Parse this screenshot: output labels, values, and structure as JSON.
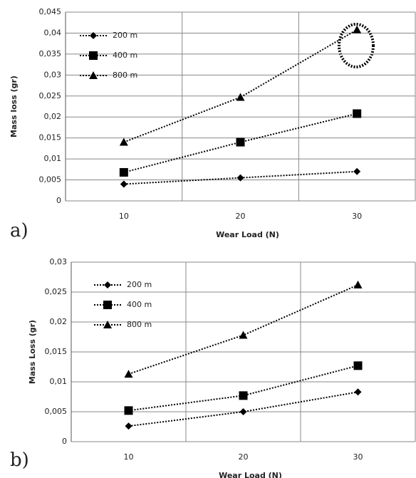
{
  "chart_data": [
    {
      "type": "line",
      "label": "a)",
      "xlabel": "Wear Load (N)",
      "ylabel": "Mass loss (gr)",
      "categories": [
        "10",
        "20",
        "30"
      ],
      "ylim": [
        0,
        0.045
      ],
      "yticks": [
        0,
        {
          "value": 0.005,
          "label": "0,005"
        },
        {
          "value": 0.01,
          "label": "0,01"
        },
        {
          "value": 0.015,
          "label": "0,015"
        },
        {
          "value": 0.02,
          "label": "0,02"
        },
        {
          "value": 0.025,
          "label": "0,025"
        },
        {
          "value": 0.03,
          "label": "0,03"
        },
        {
          "value": 0.035,
          "label": "0,035"
        },
        {
          "value": 0.04,
          "label": "0,04"
        },
        {
          "value": 0.045,
          "label": "0,045"
        }
      ],
      "grid": true,
      "series": [
        {
          "name": "200 m",
          "color": "#000000",
          "marker": "diamond",
          "values": [
            0.004,
            0.0055,
            0.007
          ]
        },
        {
          "name": "400 m",
          "color": "#000000",
          "marker": "square",
          "values": [
            0.0068,
            0.014,
            0.0208
          ]
        },
        {
          "name": "800 m",
          "color": "#000000",
          "marker": "triangle",
          "values": [
            0.014,
            0.0247,
            0.0408
          ]
        }
      ]
    },
    {
      "type": "line",
      "label": "b)",
      "xlabel": "Wear Load (N)",
      "ylabel": "Mass Loss (gr)",
      "categories": [
        "10",
        "20",
        "30"
      ],
      "ylim": [
        0,
        0.03
      ],
      "yticks": [
        0,
        {
          "value": 0.005,
          "label": "0,005"
        },
        {
          "value": 0.01,
          "label": "0,01"
        },
        {
          "value": 0.015,
          "label": "0,015"
        },
        {
          "value": 0.02,
          "label": "0,02"
        },
        {
          "value": 0.025,
          "label": "0,025"
        },
        {
          "value": 0.03,
          "label": "0,03"
        }
      ],
      "grid": true,
      "series": [
        {
          "name": "200 m",
          "color": "#000000",
          "marker": "diamond",
          "values": [
            0.0026,
            0.005,
            0.0083
          ]
        },
        {
          "name": "400 m",
          "color": "#000000",
          "marker": "square",
          "values": [
            0.0052,
            0.0077,
            0.0127
          ]
        },
        {
          "name": "800 m",
          "color": "#000000",
          "marker": "triangle",
          "values": [
            0.0113,
            0.0178,
            0.0262
          ]
        }
      ]
    }
  ]
}
